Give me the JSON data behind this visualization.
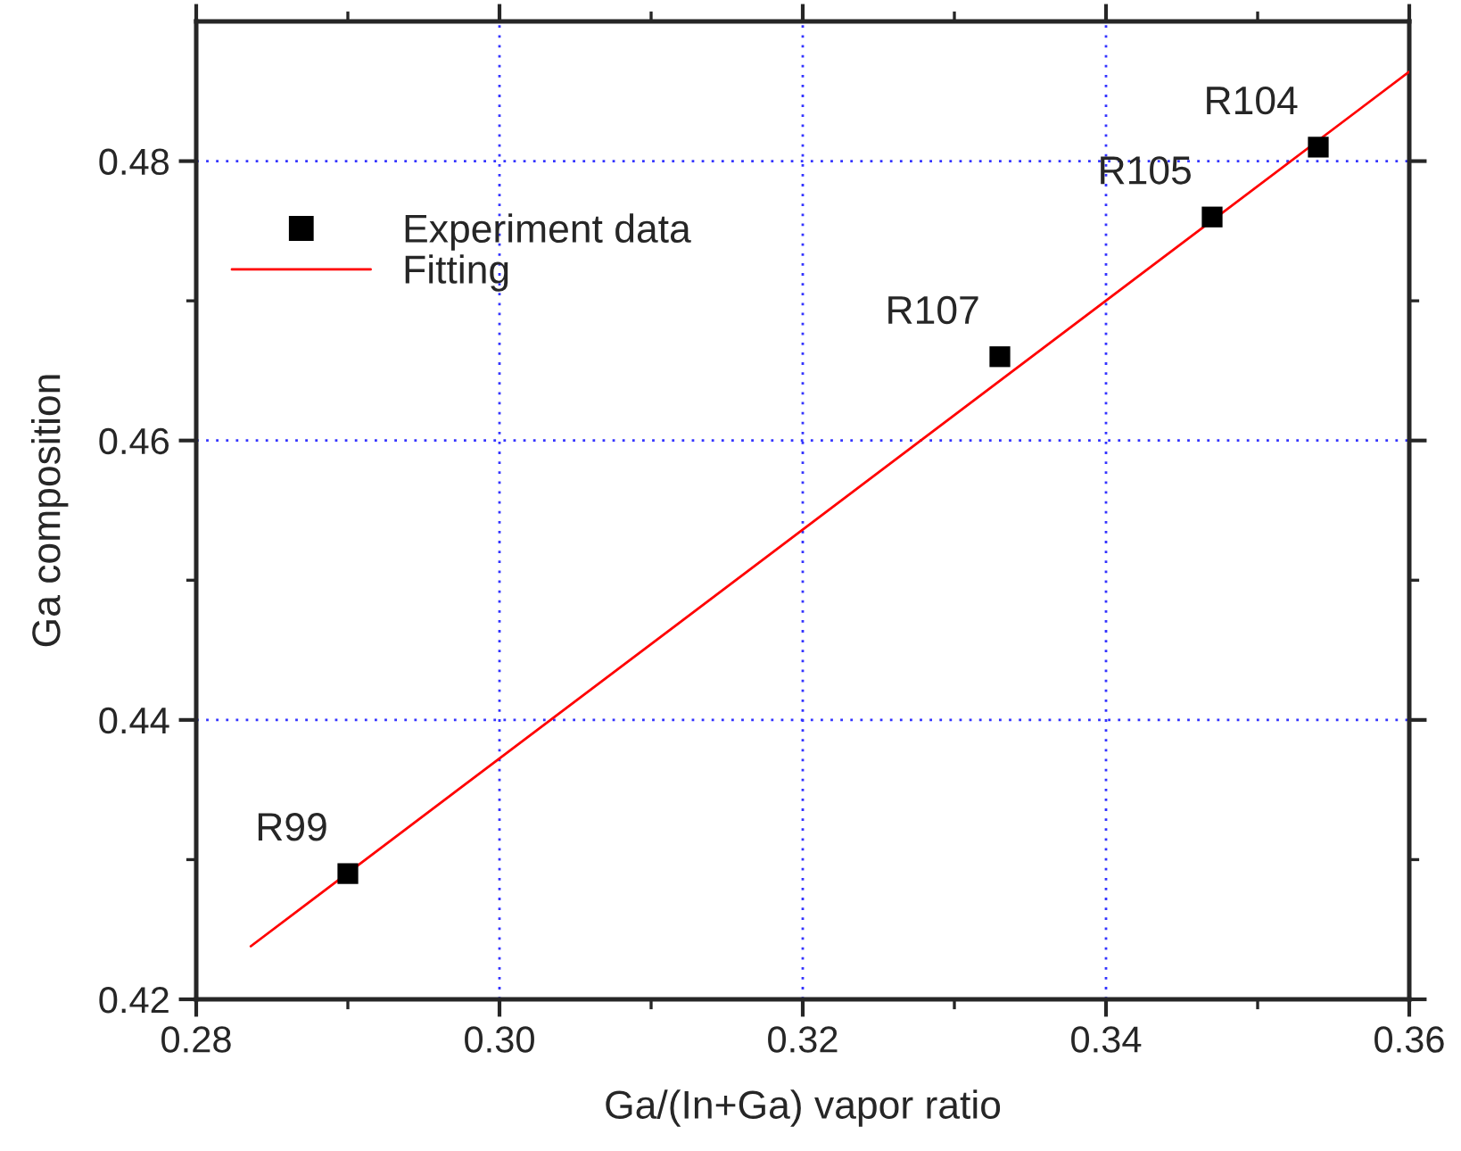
{
  "chart_data": {
    "type": "scatter",
    "xlabel": "Ga/(In+Ga) vapor ratio",
    "ylabel": "Ga composition",
    "series": [
      {
        "name": "Experiment data",
        "color": "#000000",
        "marker": "square",
        "x": [
          0.29,
          0.333,
          0.347,
          0.354
        ],
        "values": [
          0.429,
          0.466,
          0.476,
          0.481
        ]
      },
      {
        "name": "Fitting",
        "type": "line",
        "color": "#ff0000",
        "line_style": "solid",
        "x": [
          0.2836,
          0.36
        ],
        "values": [
          0.4238,
          0.4864
        ]
      }
    ],
    "annotations": [
      {
        "text": "R99",
        "x": 0.29,
        "y": 0.429
      },
      {
        "text": "R107",
        "x": 0.333,
        "y": 0.466
      },
      {
        "text": "R105",
        "x": 0.347,
        "y": 0.476
      },
      {
        "text": "R104",
        "x": 0.354,
        "y": 0.481
      }
    ],
    "xlim": [
      0.28,
      0.36
    ],
    "xticks": [
      {
        "value": 0.28,
        "label": "0.28"
      },
      {
        "value": 0.3,
        "label": "0.30"
      },
      {
        "value": 0.32,
        "label": "0.32"
      },
      {
        "value": 0.34,
        "label": "0.34"
      },
      {
        "value": 0.36,
        "label": "0.36"
      }
    ],
    "ylim": [
      0.42,
      0.49
    ],
    "yticks": [
      {
        "value": 0.42,
        "label": "0.42"
      },
      {
        "value": 0.44,
        "label": "0.44"
      },
      {
        "value": 0.46,
        "label": "0.46"
      },
      {
        "value": 0.48,
        "label": "0.48"
      }
    ],
    "grid": true,
    "legend": "top left"
  }
}
